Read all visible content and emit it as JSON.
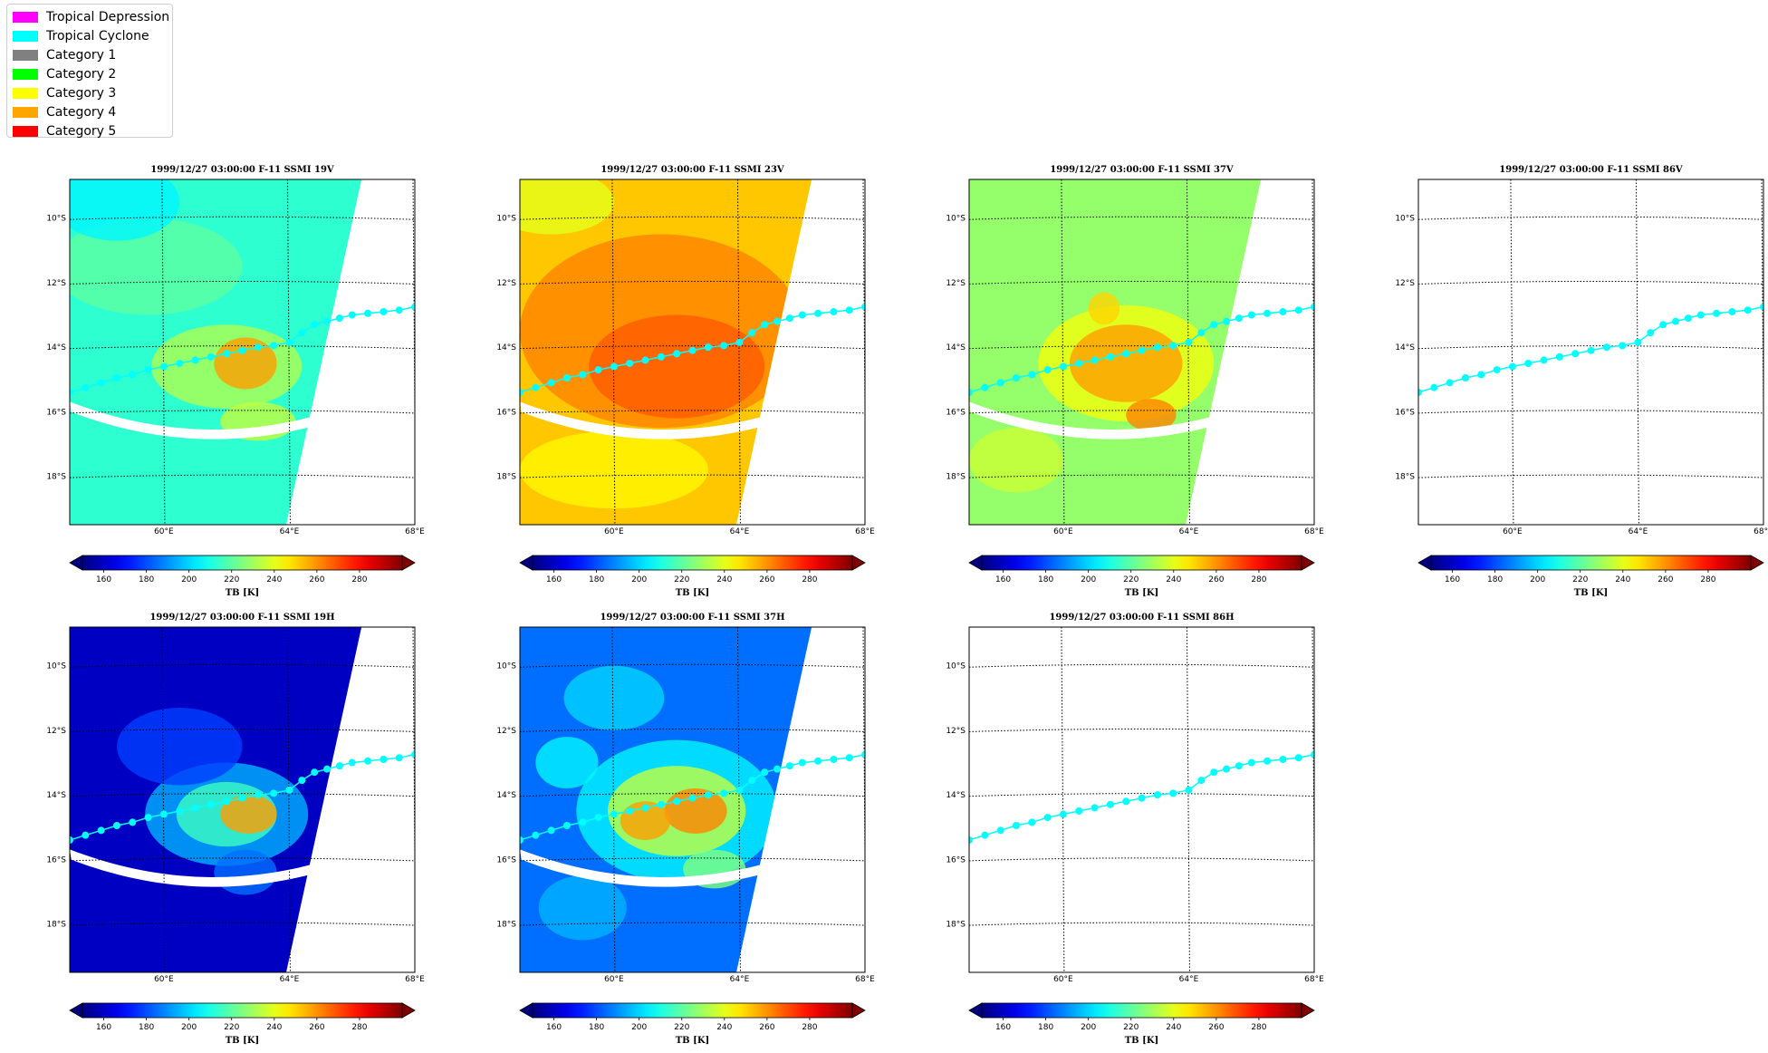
{
  "legend": {
    "items": [
      {
        "label": "Tropical Depression",
        "color": "#ff00ff"
      },
      {
        "label": "Tropical Cyclone",
        "color": "#00ffff"
      },
      {
        "label": "Category 1",
        "color": "#808080"
      },
      {
        "label": "Category 2",
        "color": "#00ff00"
      },
      {
        "label": "Category 3",
        "color": "#ffff00"
      },
      {
        "label": "Category 4",
        "color": "#ffa500"
      },
      {
        "label": "Category 5",
        "color": "#ff0000"
      }
    ]
  },
  "chart_data": [
    {
      "type": "heatmap",
      "title": "1999/12/27 03:00:00  F-11 SSMI 19V",
      "channel": "19V",
      "has_data": true,
      "background_tb": 213,
      "colorbar_label": "TB [K]"
    },
    {
      "type": "heatmap",
      "title": "1999/12/27 03:00:00  F-11 SSMI 23V",
      "channel": "23V",
      "has_data": true,
      "background_tb": 252,
      "colorbar_label": "TB [K]"
    },
    {
      "type": "heatmap",
      "title": "1999/12/27 03:00:00  F-11 SSMI 37V",
      "channel": "37V",
      "has_data": true,
      "background_tb": 228,
      "colorbar_label": "TB [K]"
    },
    {
      "type": "heatmap",
      "title": "1999/12/27 03:00:00  F-11 SSMI 86V",
      "channel": "86V",
      "has_data": false,
      "colorbar_label": "TB [K]"
    },
    {
      "type": "heatmap",
      "title": "1999/12/27 03:00:00  F-11 SSMI 19H",
      "channel": "19H",
      "has_data": true,
      "background_tb": 160,
      "colorbar_label": "TB [K]"
    },
    {
      "type": "heatmap",
      "title": "1999/12/27 03:00:00  F-11 SSMI 37H",
      "channel": "37H",
      "has_data": true,
      "background_tb": 185,
      "colorbar_label": "TB [K]"
    },
    {
      "type": "heatmap",
      "title": "1999/12/27 03:00:00  F-11 SSMI 86H",
      "channel": "86H",
      "has_data": false,
      "colorbar_label": "TB [K]"
    }
  ],
  "axes": {
    "lat_ticks": [
      "10°S",
      "12°S",
      "14°S",
      "16°S",
      "18°S"
    ],
    "lat_values": [
      -10,
      -12,
      -14,
      -16,
      -18
    ],
    "lon_ticks": [
      "60°E",
      "64°E",
      "68°E"
    ],
    "lon_values": [
      60,
      64,
      68
    ],
    "lon_range": [
      57,
      68
    ],
    "lat_range": [
      -19.5,
      -8.8
    ],
    "grid": true,
    "grid_style": "dotted"
  },
  "colorbar": {
    "colormap": "jet",
    "range": [
      150,
      300
    ],
    "ticks": [
      "160",
      "180",
      "200",
      "220",
      "240",
      "260",
      "280"
    ],
    "tick_values": [
      160,
      180,
      200,
      220,
      240,
      260,
      280
    ],
    "extend": "both"
  },
  "track": {
    "category": "Tropical Cyclone",
    "color": "#00ffff",
    "points": [
      [
        57.0,
        -15.4
      ],
      [
        57.5,
        -15.25
      ],
      [
        58.0,
        -15.1
      ],
      [
        58.5,
        -14.95
      ],
      [
        59.0,
        -14.85
      ],
      [
        59.5,
        -14.7
      ],
      [
        60.0,
        -14.6
      ],
      [
        60.5,
        -14.5
      ],
      [
        61.0,
        -14.4
      ],
      [
        61.5,
        -14.3
      ],
      [
        62.0,
        -14.2
      ],
      [
        62.5,
        -14.1
      ],
      [
        63.0,
        -14.0
      ],
      [
        63.5,
        -13.95
      ],
      [
        64.0,
        -13.85
      ],
      [
        64.4,
        -13.55
      ],
      [
        64.8,
        -13.3
      ],
      [
        65.2,
        -13.2
      ],
      [
        65.6,
        -13.1
      ],
      [
        66.0,
        -13.0
      ],
      [
        66.5,
        -12.95
      ],
      [
        67.0,
        -12.9
      ],
      [
        67.5,
        -12.85
      ],
      [
        68.0,
        -12.75
      ]
    ]
  }
}
